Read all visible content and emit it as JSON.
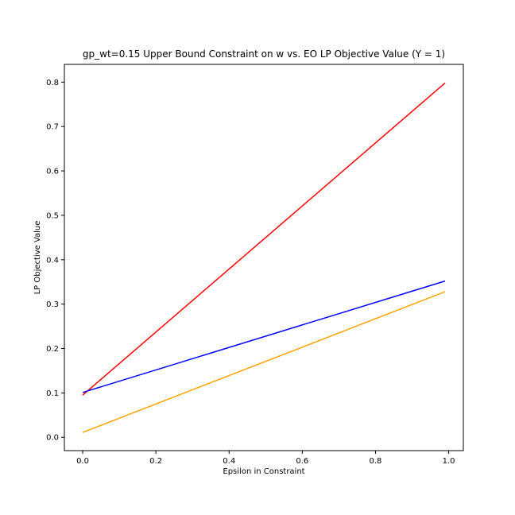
{
  "chart_data": {
    "type": "line",
    "title": "gp_wt=0.15 Upper Bound Constraint on w vs. EO LP Objective Value (Y = 1)",
    "xlabel": "Epsilon in Constraint",
    "ylabel": "LP Objective Value",
    "xlim": [
      -0.05,
      1.04
    ],
    "ylim": [
      -0.03,
      0.84
    ],
    "xticks": [
      "0.0",
      "0.2",
      "0.4",
      "0.6",
      "0.8",
      "1.0"
    ],
    "yticks": [
      "0.0",
      "0.1",
      "0.2",
      "0.3",
      "0.4",
      "0.5",
      "0.6",
      "0.7",
      "0.8"
    ],
    "grid": false,
    "series": [
      {
        "color": "#ff0000",
        "x": [
          0.0,
          0.99
        ],
        "y": [
          0.095,
          0.798
        ]
      },
      {
        "color": "#0000ff",
        "x": [
          0.0,
          0.99
        ],
        "y": [
          0.101,
          0.352
        ]
      },
      {
        "color": "#ffa500",
        "x": [
          0.0,
          0.99
        ],
        "y": [
          0.011,
          0.328
        ]
      }
    ]
  }
}
